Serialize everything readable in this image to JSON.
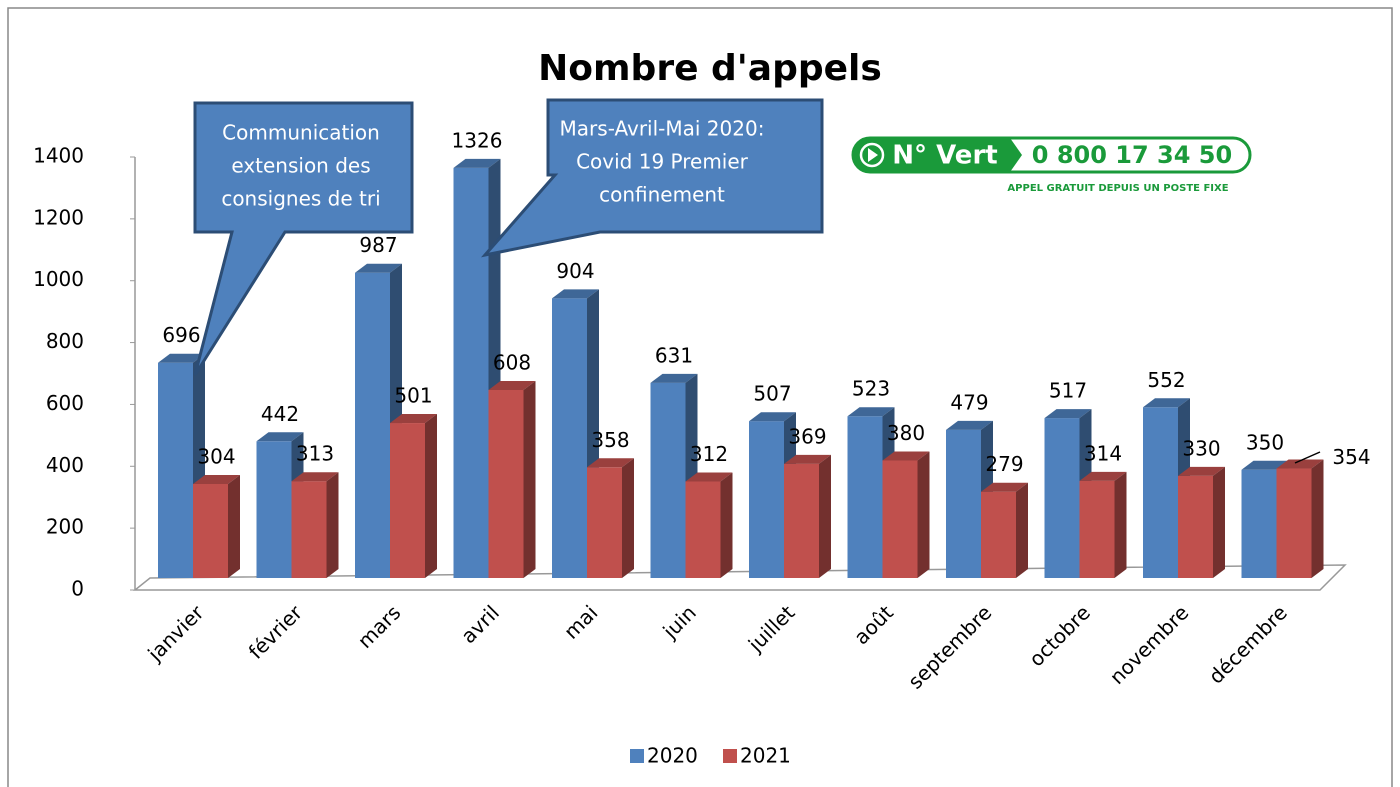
{
  "chart_data": {
    "type": "bar",
    "title": "Nombre d'appels",
    "categories": [
      "janvier",
      "février",
      "mars",
      "avril",
      "mai",
      "juin",
      "juillet",
      "août",
      "septembre",
      "octobre",
      "novembre",
      "décembre"
    ],
    "series": [
      {
        "name": "2020",
        "color": "#4f81bd",
        "values": [
          696,
          442,
          987,
          1326,
          904,
          631,
          507,
          523,
          479,
          517,
          552,
          350
        ]
      },
      {
        "name": "2021",
        "color": "#c0504d",
        "values": [
          304,
          313,
          501,
          608,
          358,
          312,
          369,
          380,
          279,
          314,
          330,
          354
        ]
      }
    ],
    "ylim": [
      0,
      1400
    ],
    "yticks": [
      0,
      200,
      400,
      600,
      800,
      1000,
      1200,
      1400
    ],
    "annotations": [
      {
        "lines": [
          "Communication",
          "extension des",
          "consignes de tri"
        ]
      },
      {
        "lines": [
          "Mars-Avril-Mai 2020:",
          "Covid 19 Premier",
          "confinement"
        ]
      }
    ],
    "logo": {
      "label": "N° Vert",
      "number": "0 800 17 34 50",
      "caption": "APPEL GRATUIT DEPUIS UN POSTE FIXE"
    }
  }
}
